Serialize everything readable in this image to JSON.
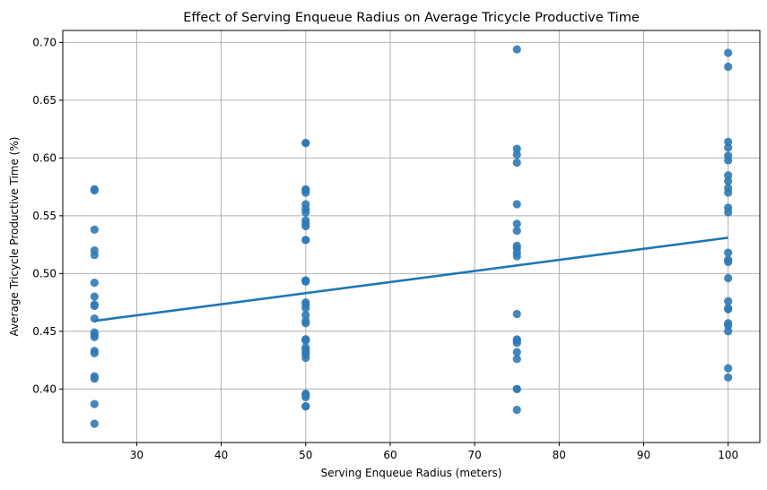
{
  "chart_data": {
    "type": "scatter",
    "title": "Effect of Serving Enqueue Radius on Average Tricycle Productive Time",
    "xlabel": "Serving Enqueue Radius (meters)",
    "ylabel": "Average Tricycle Productive Time (%)",
    "xlim": [
      21.25,
      103.75
    ],
    "ylim": [
      0.3537,
      0.7104
    ],
    "xticks": [
      30,
      40,
      50,
      60,
      70,
      80,
      90,
      100
    ],
    "yticks": [
      0.4,
      0.45,
      0.5,
      0.55,
      0.6,
      0.65,
      0.7
    ],
    "grid": true,
    "point_color": "#2f7ab6",
    "line_color": "#1f77b4",
    "x_groups": [
      25,
      50,
      75,
      100
    ],
    "y_values_by_group": [
      [
        0.572,
        0.573,
        0.538,
        0.52,
        0.516,
        0.492,
        0.48,
        0.473,
        0.472,
        0.461,
        0.449,
        0.447,
        0.445,
        0.433,
        0.431,
        0.411,
        0.409,
        0.387,
        0.37
      ],
      [
        0.613,
        0.613,
        0.573,
        0.572,
        0.57,
        0.56,
        0.556,
        0.553,
        0.546,
        0.543,
        0.541,
        0.529,
        0.529,
        0.494,
        0.494,
        0.493,
        0.475,
        0.473,
        0.47,
        0.464,
        0.459,
        0.457,
        0.443,
        0.443,
        0.442,
        0.436,
        0.434,
        0.432,
        0.43,
        0.427,
        0.396,
        0.395,
        0.393,
        0.385,
        0.385
      ],
      [
        0.694,
        0.608,
        0.603,
        0.596,
        0.56,
        0.543,
        0.537,
        0.524,
        0.522,
        0.518,
        0.515,
        0.465,
        0.443,
        0.442,
        0.44,
        0.432,
        0.426,
        0.4,
        0.4,
        0.382
      ],
      [
        0.691,
        0.679,
        0.614,
        0.609,
        0.602,
        0.598,
        0.585,
        0.58,
        0.574,
        0.57,
        0.557,
        0.553,
        0.518,
        0.512,
        0.51,
        0.496,
        0.476,
        0.47,
        0.469,
        0.457,
        0.455,
        0.45,
        0.418,
        0.41
      ]
    ],
    "regression_line": {
      "x": [
        25,
        100
      ],
      "y": [
        0.459,
        0.531
      ]
    }
  }
}
